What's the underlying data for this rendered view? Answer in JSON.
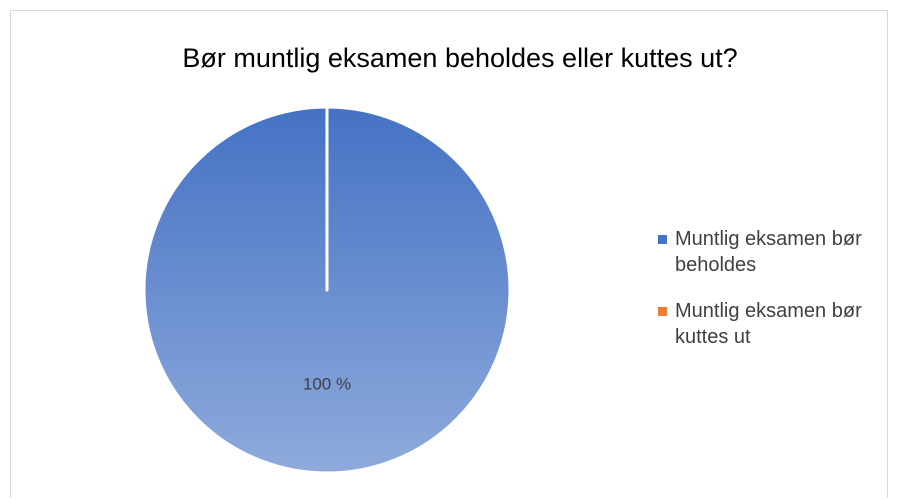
{
  "chart_data": {
    "type": "pie",
    "title": "Bør muntlig eksamen beholdes eller kuttes ut?",
    "categories": [
      "Muntlig eksamen bør beholdes",
      "Muntlig eksamen bør kuttes ut"
    ],
    "values": [
      100,
      0
    ],
    "value_labels": [
      "100 %",
      null
    ],
    "colors": [
      "#4472c4",
      "#ed7d31"
    ],
    "legend": "right"
  }
}
